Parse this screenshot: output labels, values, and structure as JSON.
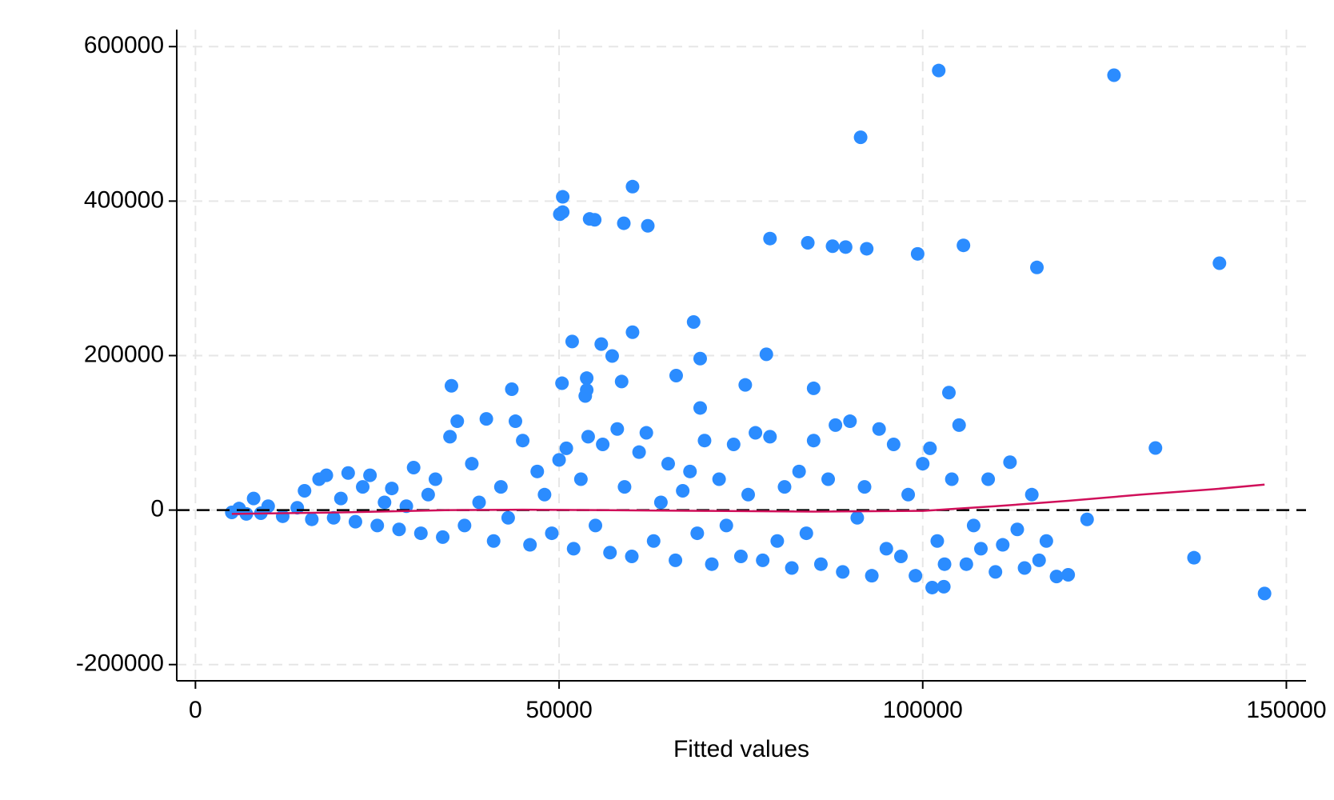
{
  "chart_data": {
    "type": "scatter",
    "x_label": "Fitted values",
    "xlim": [
      -2570,
      152700
    ],
    "ylim": [
      -221000,
      622000
    ],
    "xticks": [
      0,
      50000,
      100000,
      150000
    ],
    "yticks": [
      -200000,
      0,
      200000,
      400000,
      600000
    ],
    "grid": true,
    "hline": 0,
    "series": [
      {
        "type": "scatter",
        "color": "#2b8cff",
        "x": [
          102200,
          126300,
          91460,
          60100,
          50500,
          50100,
          50500,
          54200,
          54900,
          58900,
          62200,
          79000,
          84200,
          87600,
          89400,
          92300,
          99300,
          105600,
          115700,
          140800,
          68500,
          60100,
          51800,
          55800,
          57300,
          78500,
          69400,
          53800,
          50400,
          53800,
          53600,
          58600,
          66100,
          35200,
          43500,
          75600,
          85000,
          103600,
          69400,
          132000,
          137300,
          147000,
          122600,
          101300,
          102900,
          118400,
          120000,
          5000,
          6000,
          7000,
          8000,
          9000,
          10000,
          12000,
          14000,
          15000,
          16000,
          17000,
          18000,
          19000,
          20000,
          21000,
          22000,
          23000,
          24000,
          25000,
          26000,
          27000,
          28000,
          29000,
          30000,
          31000,
          32000,
          33000,
          34000,
          35000,
          36000,
          37000,
          38000,
          39000,
          40000,
          41000,
          42000,
          43000,
          44000,
          45000,
          46000,
          47000,
          48000,
          49000,
          50000,
          51000,
          52000,
          53000,
          54000,
          55000,
          56000,
          57000,
          58000,
          59000,
          60000,
          61000,
          62000,
          63000,
          64000,
          65000,
          66000,
          67000,
          68000,
          69000,
          70000,
          71000,
          72000,
          73000,
          74000,
          75000,
          76000,
          77000,
          78000,
          79000,
          80000,
          81000,
          82000,
          83000,
          84000,
          85000,
          86000,
          87000,
          88000,
          89000,
          90000,
          91000,
          92000,
          93000,
          94000,
          95000,
          96000,
          97000,
          98000,
          99000,
          100000,
          101000,
          102000,
          103000,
          104000,
          105000,
          106000,
          107000,
          108000,
          109000,
          110000,
          111000,
          112000,
          113000,
          114000,
          115000,
          116000,
          117000
        ],
        "y": [
          569000,
          563000,
          482600,
          418700,
          405500,
          383000,
          385700,
          376900,
          375800,
          371300,
          368000,
          351500,
          346000,
          341600,
          340500,
          338300,
          331700,
          342700,
          314100,
          319600,
          243500,
          230300,
          218200,
          214900,
          199500,
          201700,
          196100,
          170800,
          164200,
          155400,
          147700,
          166400,
          174100,
          160900,
          156500,
          162000,
          157600,
          152100,
          132200,
          80400,
          -61700,
          -108000,
          -12100,
          -100300,
          -99200,
          -86000,
          -83800,
          -3000,
          2000,
          -5000,
          15000,
          -4000,
          5000,
          -8000,
          3000,
          25000,
          -12000,
          40000,
          45000,
          -10000,
          15000,
          48000,
          -15000,
          30000,
          45000,
          -20000,
          10000,
          28000,
          -25000,
          5000,
          55000,
          -30000,
          20000,
          40000,
          -35000,
          95000,
          115000,
          -20000,
          60000,
          10000,
          118000,
          -40000,
          30000,
          -10000,
          115000,
          90000,
          -45000,
          50000,
          20000,
          -30000,
          65000,
          80000,
          -50000,
          40000,
          95000,
          -20000,
          85000,
          -55000,
          105000,
          30000,
          -60000,
          75000,
          100000,
          -40000,
          10000,
          60000,
          -65000,
          25000,
          50000,
          -30000,
          90000,
          -70000,
          40000,
          -20000,
          85000,
          -60000,
          20000,
          100000,
          -65000,
          95000,
          -40000,
          30000,
          -75000,
          50000,
          -30000,
          90000,
          -70000,
          40000,
          110000,
          -80000,
          115000,
          -10000,
          30000,
          -85000,
          105000,
          -50000,
          85000,
          -60000,
          20000,
          -85000,
          60000,
          80000,
          -40000,
          -70000,
          40000,
          110000,
          -70000,
          -20000,
          -50000,
          40000,
          -80000,
          -45000,
          62000,
          -25000,
          -75000,
          20000,
          -65000,
          -40000
        ]
      },
      {
        "type": "line",
        "color": "#d0105a",
        "x": [
          5000,
          20000,
          35000,
          45000,
          55000,
          70000,
          85000,
          100000,
          110000,
          120000,
          130000,
          140000,
          147000
        ],
        "y": [
          -5000,
          -3000,
          0,
          500,
          0,
          -1000,
          -2000,
          -1000,
          5000,
          12000,
          20000,
          27000,
          33000
        ]
      }
    ]
  }
}
